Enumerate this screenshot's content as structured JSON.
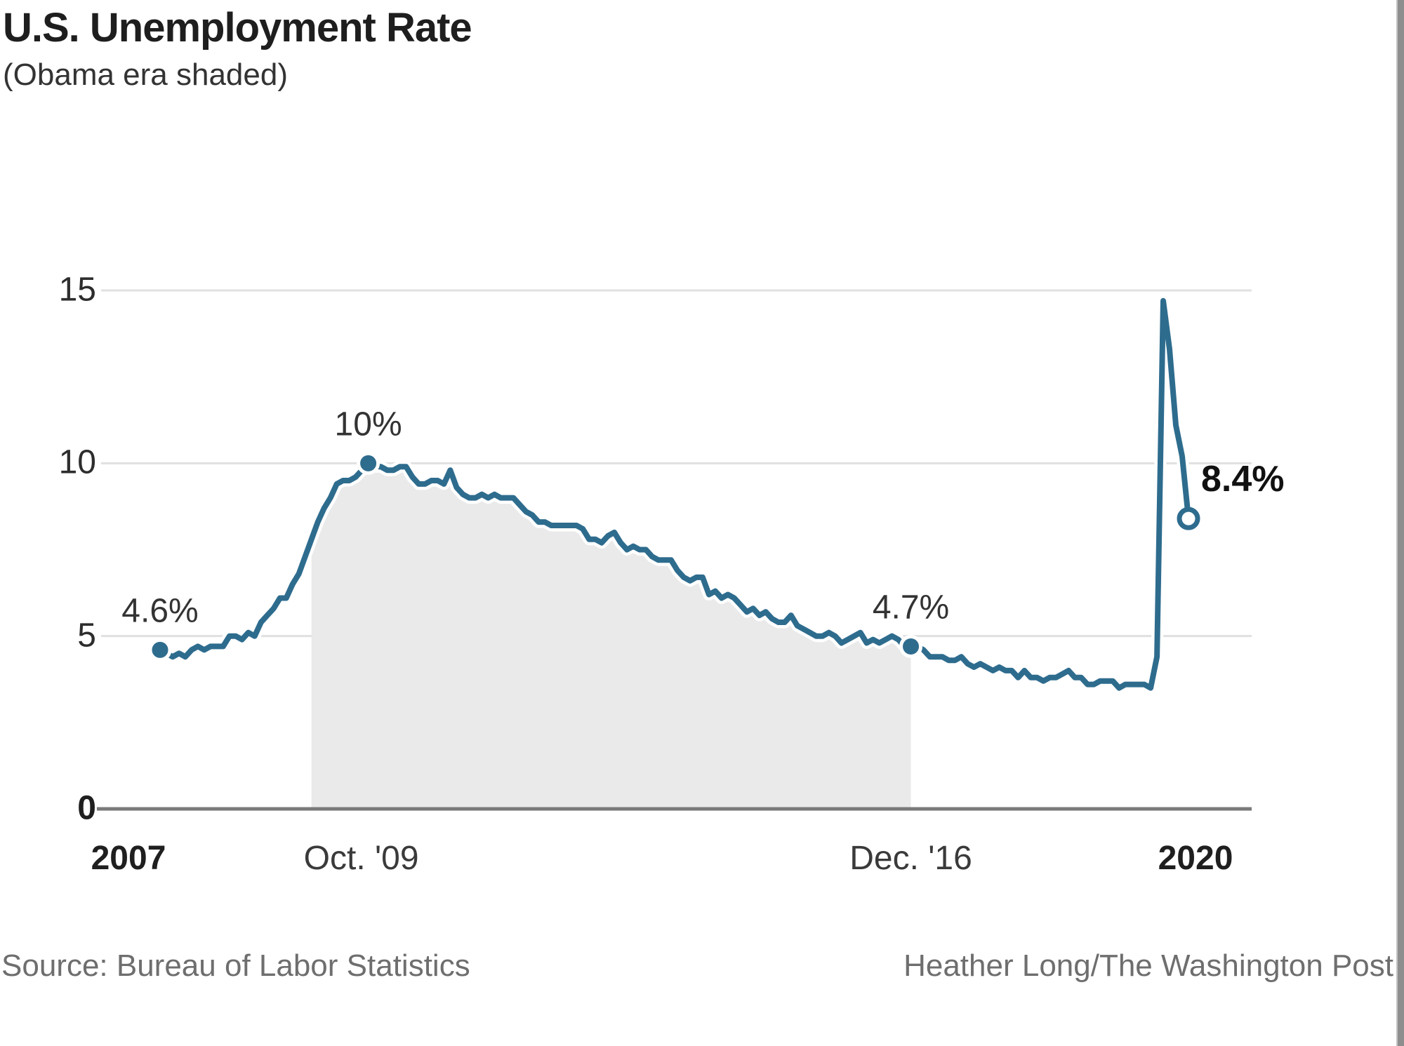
{
  "header": {
    "title": "U.S. Unemployment Rate",
    "subtitle": "(Obama era shaded)"
  },
  "footer": {
    "source": "Source: Bureau of Labor Statistics",
    "credit": "Heather Long/The Washington Post"
  },
  "chart_data": {
    "type": "line",
    "title": "U.S. Unemployment Rate",
    "subtitle": "(Obama era shaded)",
    "unit": "percent",
    "x_monthly_start": "2007-01",
    "x_monthly_end": "2020-08",
    "ylim": [
      0,
      15
    ],
    "grid": "horizontal-only",
    "series": [
      {
        "name": "Unemployment rate",
        "values": [
          4.6,
          4.5,
          4.4,
          4.5,
          4.4,
          4.6,
          4.7,
          4.6,
          4.7,
          4.7,
          4.7,
          5.0,
          5.0,
          4.9,
          5.1,
          5.0,
          5.4,
          5.6,
          5.8,
          6.1,
          6.1,
          6.5,
          6.8,
          7.3,
          7.8,
          8.3,
          8.7,
          9.0,
          9.4,
          9.5,
          9.5,
          9.6,
          9.8,
          10.0,
          9.9,
          9.9,
          9.8,
          9.8,
          9.9,
          9.9,
          9.6,
          9.4,
          9.4,
          9.5,
          9.5,
          9.4,
          9.8,
          9.3,
          9.1,
          9.0,
          9.0,
          9.1,
          9.0,
          9.1,
          9.0,
          9.0,
          9.0,
          8.8,
          8.6,
          8.5,
          8.3,
          8.3,
          8.2,
          8.2,
          8.2,
          8.2,
          8.2,
          8.1,
          7.8,
          7.8,
          7.7,
          7.9,
          8.0,
          7.7,
          7.5,
          7.6,
          7.5,
          7.5,
          7.3,
          7.2,
          7.2,
          7.2,
          6.9,
          6.7,
          6.6,
          6.7,
          6.7,
          6.2,
          6.3,
          6.1,
          6.2,
          6.1,
          5.9,
          5.7,
          5.8,
          5.6,
          5.7,
          5.5,
          5.4,
          5.4,
          5.6,
          5.3,
          5.2,
          5.1,
          5.0,
          5.0,
          5.1,
          5.0,
          4.8,
          4.9,
          5.0,
          5.1,
          4.8,
          4.9,
          4.8,
          4.9,
          5.0,
          4.9,
          4.7,
          4.7,
          4.7,
          4.6,
          4.4,
          4.4,
          4.4,
          4.3,
          4.3,
          4.4,
          4.2,
          4.1,
          4.2,
          4.1,
          4.0,
          4.1,
          4.0,
          4.0,
          3.8,
          4.0,
          3.8,
          3.8,
          3.7,
          3.8,
          3.8,
          3.9,
          4.0,
          3.8,
          3.8,
          3.6,
          3.6,
          3.7,
          3.7,
          3.7,
          3.5,
          3.6,
          3.6,
          3.6,
          3.6,
          3.5,
          4.4,
          14.7,
          13.3,
          11.1,
          10.2,
          8.4
        ]
      }
    ],
    "y_ticks": [
      {
        "label": "15",
        "value": 15,
        "bold": false
      },
      {
        "label": "10",
        "value": 10,
        "bold": false
      },
      {
        "label": "5",
        "value": 5,
        "bold": false
      },
      {
        "label": "0",
        "value": 0,
        "bold": true
      }
    ],
    "x_ticks": [
      {
        "label": "2007",
        "month": 0,
        "bold": true,
        "dx": -45
      },
      {
        "label": "Oct. '09",
        "month": 33,
        "bold": false,
        "dx": -10
      },
      {
        "label": "Dec. '16",
        "month": 119,
        "bold": false,
        "dx": 0
      },
      {
        "label": "2020",
        "month": 163,
        "bold": true,
        "dx": 10
      }
    ],
    "annotations": [
      {
        "label": "4.6%",
        "month": 0,
        "value": 4.6,
        "marker": "filled",
        "placement": "above",
        "style": "regular"
      },
      {
        "label": "10%",
        "month": 33,
        "value": 10.0,
        "marker": "filled",
        "placement": "above",
        "style": "regular"
      },
      {
        "label": "4.7%",
        "month": 119,
        "value": 4.7,
        "marker": "filled",
        "placement": "above",
        "style": "regular"
      },
      {
        "label": "8.4%",
        "month": 163,
        "value": 8.4,
        "marker": "open",
        "placement": "right",
        "style": "bold"
      }
    ],
    "shaded_region": {
      "label": "Obama era",
      "from_month": 24,
      "to_month": 119
    },
    "colors": {
      "line": "#2e6c8e",
      "shade": "#eaeaea",
      "gridline": "#e0e0e0",
      "axis_line": "#7a7a7a",
      "marker_halo": "#ffffff"
    },
    "legend": "none"
  }
}
